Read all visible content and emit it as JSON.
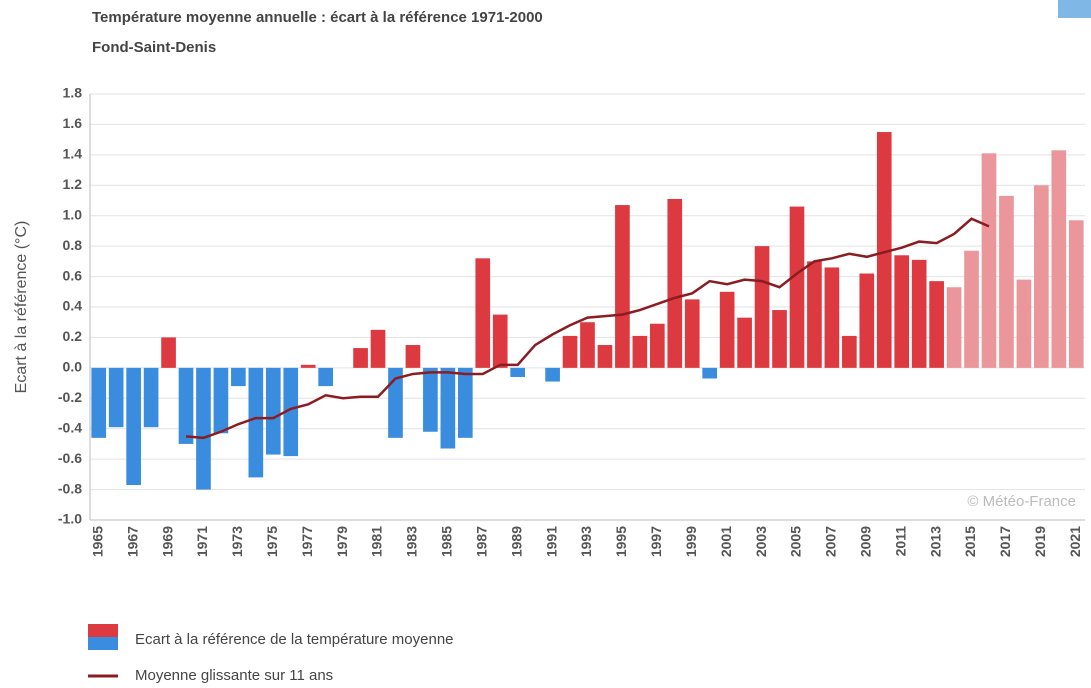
{
  "chart_data": {
    "type": "bar",
    "title": "Température moyenne annuelle : écart à la référence 1971-2000",
    "subtitle": "Fond-Saint-Denis",
    "y_label": "Ecart à la référence (°C)",
    "watermark": "© Météo-France",
    "categories": [
      "1965",
      null,
      "1967",
      null,
      "1969",
      null,
      "1971",
      null,
      "1973",
      null,
      "1975",
      null,
      "1977",
      null,
      "1979",
      null,
      "1981",
      null,
      "1983",
      null,
      "1985",
      null,
      "1987",
      null,
      "1989",
      null,
      "1991",
      null,
      "1993",
      null,
      "1995",
      null,
      "1997",
      null,
      "1999",
      null,
      "2001",
      null,
      "2003",
      null,
      "2005",
      null,
      "2007",
      null,
      "2009",
      null,
      "2011",
      null,
      "2013",
      null,
      "2015",
      null,
      "2017",
      null,
      "2019",
      null,
      "2021"
    ],
    "series": [
      {
        "name": "Ecart à la référence de la température moyenne",
        "type": "bar",
        "values": [
          -0.46,
          -0.39,
          -0.77,
          -0.39,
          0.2,
          -0.5,
          -0.8,
          -0.43,
          -0.12,
          -0.72,
          -0.57,
          -0.58,
          0.02,
          -0.12,
          0.0,
          0.13,
          0.25,
          -0.46,
          0.15,
          -0.42,
          -0.53,
          -0.46,
          0.72,
          0.35,
          -0.06,
          0.0,
          -0.09,
          0.21,
          0.3,
          0.15,
          1.07,
          0.21,
          0.29,
          1.11,
          0.45,
          -0.07,
          0.5,
          0.33,
          0.8,
          0.38,
          1.06,
          0.7,
          0.66,
          0.21,
          0.62,
          1.55,
          0.74,
          0.71,
          0.57,
          0.53,
          0.77,
          1.41,
          1.13,
          0.58,
          1.2,
          1.43,
          0.97
        ],
        "colors": [
          "#3a8dde",
          "#3a8dde",
          "#3a8dde",
          "#3a8dde",
          "#dc3a40",
          "#3a8dde",
          "#3a8dde",
          "#3a8dde",
          "#3a8dde",
          "#3a8dde",
          "#3a8dde",
          "#3a8dde",
          "#dc3a40",
          "#3a8dde",
          "#3a8dde",
          "#dc3a40",
          "#dc3a40",
          "#3a8dde",
          "#dc3a40",
          "#3a8dde",
          "#3a8dde",
          "#3a8dde",
          "#dc3a40",
          "#dc3a40",
          "#3a8dde",
          "#3a8dde",
          "#3a8dde",
          "#dc3a40",
          "#dc3a40",
          "#dc3a40",
          "#dc3a40",
          "#dc3a40",
          "#dc3a40",
          "#dc3a40",
          "#dc3a40",
          "#3a8dde",
          "#dc3a40",
          "#dc3a40",
          "#dc3a40",
          "#dc3a40",
          "#dc3a40",
          "#dc3a40",
          "#dc3a40",
          "#dc3a40",
          "#dc3a40",
          "#dc3a40",
          "#dc3a40",
          "#dc3a40",
          "#dc3a40",
          "#ea969b",
          "#ea969b",
          "#ea969b",
          "#ea969b",
          "#ea969b",
          "#ea969b",
          "#ea969b",
          "#ea969b"
        ]
      },
      {
        "name": "Moyenne glissante sur 11 ans",
        "type": "line",
        "color": "#8b1c22",
        "values": [
          null,
          null,
          null,
          null,
          null,
          -0.45,
          -0.46,
          -0.42,
          -0.37,
          -0.33,
          -0.33,
          -0.27,
          -0.24,
          -0.18,
          -0.2,
          -0.19,
          -0.19,
          -0.07,
          -0.04,
          -0.03,
          -0.03,
          -0.04,
          -0.04,
          0.02,
          0.02,
          0.15,
          0.22,
          0.28,
          0.33,
          0.34,
          0.35,
          0.38,
          0.42,
          0.46,
          0.49,
          0.57,
          0.55,
          0.58,
          0.57,
          0.53,
          0.62,
          0.7,
          0.72,
          0.75,
          0.73,
          0.76,
          0.79,
          0.83,
          0.82,
          0.88,
          0.98,
          0.93,
          null,
          null,
          null,
          null,
          null
        ]
      }
    ],
    "ylim": [
      -1.0,
      1.8
    ],
    "yticks": [
      {
        "value": -1,
        "label": "-1.0"
      },
      -0.8,
      -0.6,
      -0.4,
      -0.2,
      {
        "value": 0,
        "label": "0.0"
      },
      0.2,
      0.4,
      0.6,
      0.8,
      {
        "value": 1,
        "label": "1.0"
      },
      1.2,
      1.4,
      1.6,
      1.8
    ],
    "grid": true
  }
}
